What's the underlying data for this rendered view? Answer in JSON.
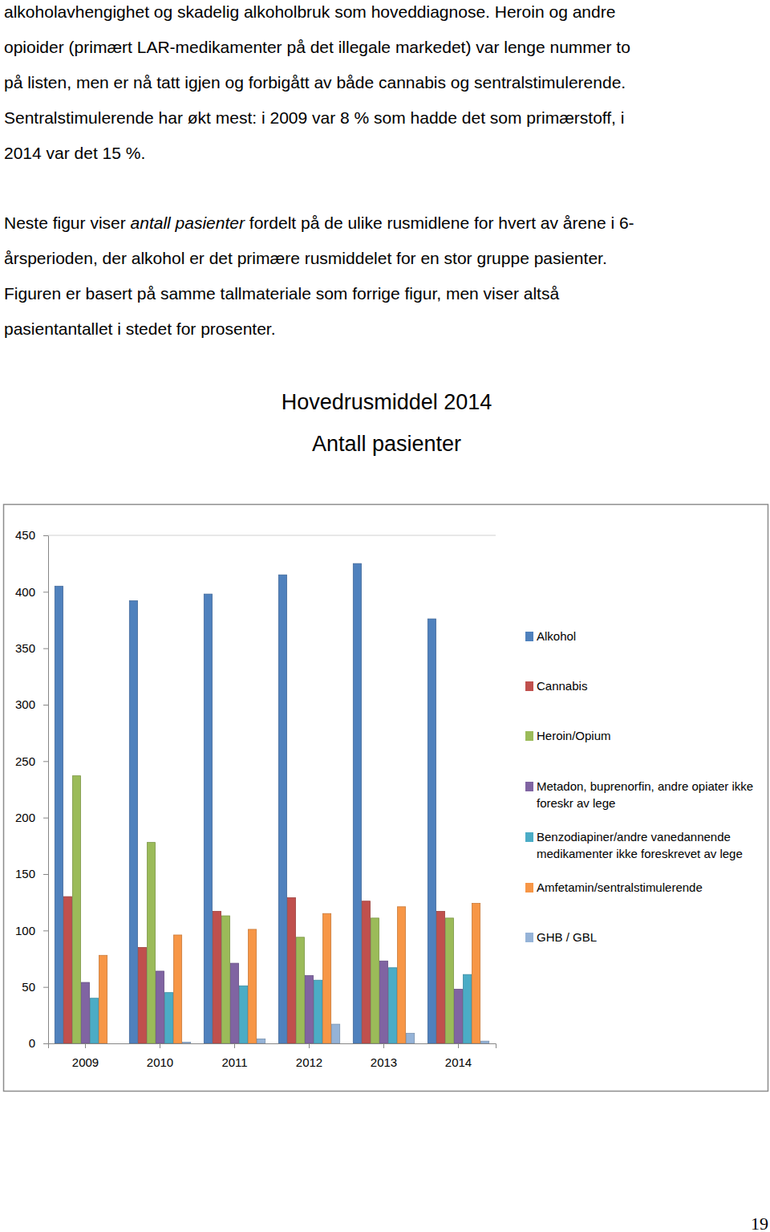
{
  "document": {
    "paragraphs": [
      {
        "lines": [
          [
            {
              "text": "alkoholavhengighet og skadelig alkoholbruk som hoveddiagnose. Heroin og andre"
            }
          ],
          [
            {
              "text": "opioider (primært LAR-medikamenter på det illegale markedet) var lenge nummer to"
            }
          ],
          [
            {
              "text": "på listen, men er nå tatt igjen og forbigått av både cannabis og sentralstimulerende."
            }
          ],
          [
            {
              "text": "Sentralstimulerende har økt mest: i 2009 var 8 % som hadde det som primærstoff, i"
            }
          ],
          [
            {
              "text": "2014 var det 15 %."
            }
          ]
        ]
      },
      {
        "lines": [
          [
            {
              "text": "Neste figur viser "
            },
            {
              "text": "antall pasienter",
              "italic": true
            },
            {
              "text": " fordelt på de ulike rusmidlene for hvert av årene i 6-"
            }
          ],
          [
            {
              "text": "årsperioden, der alkohol er det primære rusmiddelet for en stor gruppe pasienter."
            }
          ],
          [
            {
              "text": "Figuren er basert på samme tallmateriale som forrige figur, men viser altså"
            }
          ],
          [
            {
              "text": "pasientantallet i stedet for prosenter."
            }
          ]
        ]
      }
    ],
    "page_number": "19"
  },
  "chart_data": {
    "type": "bar",
    "title": "Hovedrusmiddel 2014",
    "subtitle": "Antall pasienter",
    "categories": [
      "2009",
      "2010",
      "2011",
      "2012",
      "2013",
      "2014"
    ],
    "series": [
      {
        "name": "Alkohol",
        "color": "#4f81bd",
        "values": [
          405,
          392,
          398,
          415,
          425,
          376
        ]
      },
      {
        "name": "Cannabis",
        "color": "#c0504d",
        "values": [
          130,
          85,
          117,
          129,
          126,
          117
        ]
      },
      {
        "name": "Heroin/Opium",
        "color": "#9bbb59",
        "values": [
          237,
          178,
          113,
          94,
          111,
          111
        ]
      },
      {
        "name": "Metadon, buprenorfin, andre opiater ikke foreskr av lege",
        "color": "#8064a2",
        "values": [
          54,
          64,
          71,
          60,
          73,
          48
        ]
      },
      {
        "name": "Benzodiapiner/andre vanedannende medikamenter ikke foreskrevet av lege",
        "color": "#4bacc6",
        "values": [
          40,
          45,
          51,
          56,
          67,
          61
        ]
      },
      {
        "name": "Amfetamin/sentralstimulerende",
        "color": "#f79646",
        "values": [
          78,
          96,
          101,
          115,
          121,
          124
        ]
      },
      {
        "name": "GHB / GBL",
        "color": "#95b3d7",
        "values": [
          0,
          1,
          4,
          17,
          9,
          2
        ]
      }
    ],
    "ylim": [
      0,
      450
    ],
    "yticks": [
      0,
      50,
      100,
      150,
      200,
      250,
      300,
      350,
      400,
      450
    ],
    "grid": false,
    "legend": "right"
  }
}
